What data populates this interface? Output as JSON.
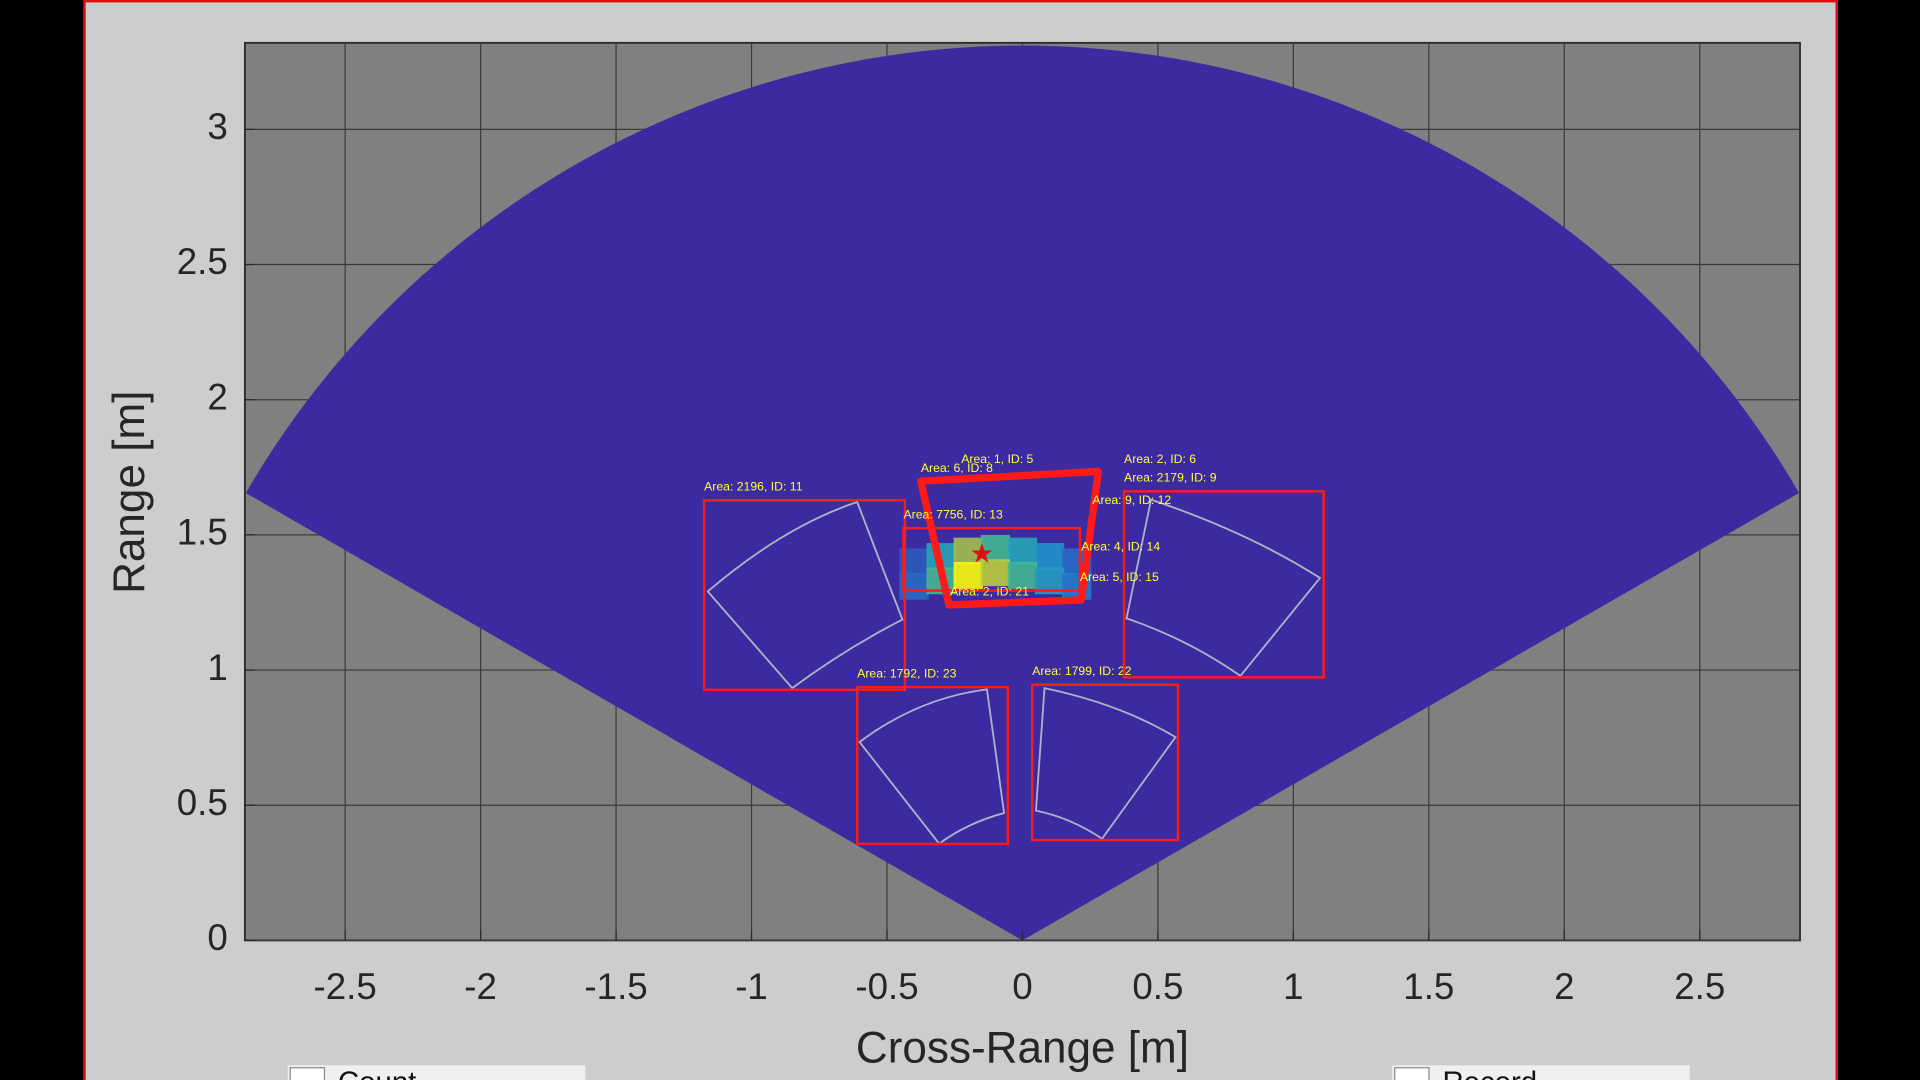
{
  "chart_data": {
    "type": "heatmap",
    "x_label": "Cross-Range [m]",
    "y_label": "Range [m]",
    "xlim": [
      -2.87,
      2.87
    ],
    "ylim": [
      0,
      3.32
    ],
    "xticks": [
      -2.5,
      -2,
      -1.5,
      -1,
      -0.5,
      0,
      0.5,
      1,
      1.5,
      2,
      2.5
    ],
    "yticks": [
      0,
      0.5,
      1,
      1.5,
      2,
      2.5,
      3
    ],
    "grid": true,
    "heatmap": {
      "range_max": 3.31,
      "angle_limits": [
        -60,
        60
      ],
      "x": [
        -0.4,
        -0.3,
        -0.2,
        -0.1,
        0,
        0.1,
        0.2,
        -0.4,
        -0.3,
        -0.2,
        -0.1,
        0,
        0.1,
        0.2
      ],
      "y": [
        1.4,
        1.42,
        1.44,
        1.45,
        1.44,
        1.42,
        1.4,
        1.31,
        1.33,
        1.35,
        1.36,
        1.35,
        1.33,
        1.31
      ],
      "values": [
        0.15,
        0.45,
        0.8,
        0.6,
        0.45,
        0.35,
        0.2,
        0.2,
        0.6,
        1,
        0.85,
        0.6,
        0.4,
        0.25
      ]
    },
    "target": {
      "x": -0.15,
      "y": 1.43
    },
    "detections": [
      {
        "label": "Area: 2196, ID: 11",
        "x": [
          -1.175,
          -0.434
        ],
        "y": [
          0.927,
          1.628
        ]
      },
      {
        "label": "Area: 7756, ID: 13",
        "x": [
          -0.439,
          0.212
        ],
        "y": [
          1.294,
          1.525
        ]
      },
      {
        "label": "Area: 1792, ID: 23",
        "x": [
          -0.61,
          -0.054
        ],
        "y": [
          0.357,
          0.937
        ]
      },
      {
        "label": "Area: 1799, ID: 22",
        "x": [
          0.036,
          0.574
        ],
        "y": [
          0.371,
          0.946
        ]
      },
      {
        "label": "Area: 2179, ID: 9",
        "x": [
          0.375,
          1.112
        ],
        "y": [
          0.973,
          1.661
        ]
      }
    ],
    "small_labels": [
      {
        "text": "Area: 9, ID: 12",
        "x": 0.258,
        "y": 1.615
      },
      {
        "text": "Area: 4, ID: 14",
        "x": 0.217,
        "y": 1.443
      },
      {
        "text": "Area: 5, ID: 15",
        "x": 0.212,
        "y": 1.33
      },
      {
        "text": "Area: 2, ID: 6",
        "x": 0.375,
        "y": 1.765
      },
      {
        "text": "Area: 1, ID: 5",
        "x": -0.226,
        "y": 1.765
      },
      {
        "text": "Area: 6, ID: 8",
        "x": -0.375,
        "y": 1.733
      },
      {
        "text": "Area: 2, ID: 21",
        "x": -0.267,
        "y": 1.276
      }
    ]
  },
  "controls": {
    "count": "Count",
    "record": "Record"
  }
}
